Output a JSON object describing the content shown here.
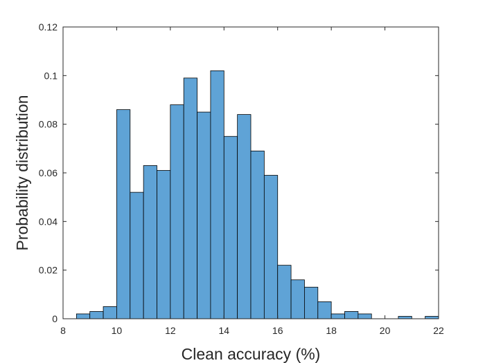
{
  "chart_data": {
    "type": "bar",
    "title": "",
    "xlabel": "Clean accuracy (%)",
    "ylabel": "Probability distribution",
    "xlim": [
      8,
      22
    ],
    "ylim": [
      0,
      0.12
    ],
    "bin_width": 0.5,
    "bin_edges": [
      8.5,
      9,
      9.5,
      10,
      10.5,
      11,
      11.5,
      12,
      12.5,
      13,
      13.5,
      14,
      14.5,
      15,
      15.5,
      16,
      16.5,
      17,
      17.5,
      18,
      18.5,
      19,
      19.5,
      20,
      20.5,
      21,
      21.5,
      22
    ],
    "values": [
      0.002,
      0.003,
      0.005,
      0.086,
      0.052,
      0.063,
      0.061,
      0.088,
      0.099,
      0.085,
      0.102,
      0.075,
      0.084,
      0.069,
      0.059,
      0.022,
      0.016,
      0.013,
      0.007,
      0.002,
      0.003,
      0.002,
      0,
      0,
      0.001,
      0,
      0.001
    ],
    "xticks": [
      8,
      10,
      12,
      14,
      16,
      18,
      20,
      22
    ],
    "xtick_labels": [
      "8",
      "10",
      "12",
      "14",
      "16",
      "18",
      "20",
      "22"
    ],
    "yticks": [
      0,
      0.02,
      0.04,
      0.06,
      0.08,
      0.1,
      0.12
    ],
    "ytick_labels": [
      "0",
      "0.02",
      "0.04",
      "0.06",
      "0.08",
      "0.1",
      "0.12"
    ],
    "grid": false,
    "bar_color": "#5fa3d6",
    "edge_color": "#000000"
  }
}
